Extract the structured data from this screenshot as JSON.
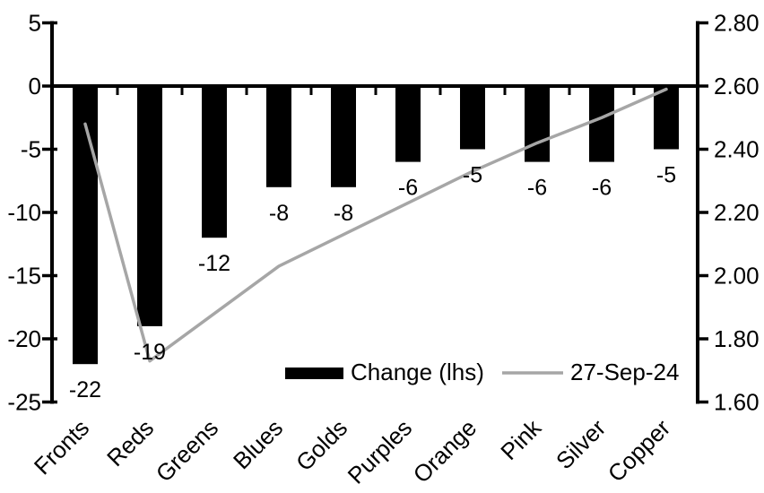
{
  "chart_data": {
    "type": "combo",
    "title": "",
    "categories": [
      "Fronts",
      "Reds",
      "Greens",
      "Blues",
      "Golds",
      "Purples",
      "Orange",
      "Pink",
      "Silver",
      "Copper"
    ],
    "series": [
      {
        "name": "Change (lhs)",
        "type": "bar",
        "axis": "left",
        "color": "#000000",
        "values": [
          -22,
          -19,
          -12,
          -8,
          -8,
          -6,
          -5,
          -6,
          -6,
          -5
        ],
        "data_labels": [
          "-22",
          "-19",
          "-12",
          "-8",
          "-8",
          "-6",
          "-5",
          "-6",
          "-6",
          "-5"
        ]
      },
      {
        "name": "27-Sep-24",
        "type": "line",
        "axis": "right",
        "color": "#a6a6a6",
        "values": [
          2.48,
          1.73,
          1.88,
          2.03,
          2.13,
          2.23,
          2.33,
          2.42,
          2.5,
          2.59
        ]
      }
    ],
    "left_axis": {
      "min": -25,
      "max": 5,
      "tick_values": [
        5,
        0,
        -5,
        -10,
        -15,
        -20,
        -25
      ],
      "tick_labels": [
        "5",
        "0",
        "-5",
        "-10",
        "-15",
        "-20",
        "-25"
      ]
    },
    "right_axis": {
      "min": 1.6,
      "max": 2.8,
      "tick_values": [
        2.8,
        2.6,
        2.4,
        2.2,
        2.0,
        1.8,
        1.6
      ],
      "tick_labels": [
        "2.80",
        "2.60",
        "2.40",
        "2.20",
        "2.00",
        "1.80",
        "1.60"
      ]
    },
    "legend": {
      "position": "bottom-inside",
      "entries": [
        {
          "label": "Change (lhs)",
          "swatch": "bar"
        },
        {
          "label": "27-Sep-24",
          "swatch": "line"
        }
      ]
    },
    "grid": false,
    "colors": {
      "bar": "#000000",
      "line": "#a6a6a6",
      "axis": "#000000",
      "text": "#000000",
      "background": "#ffffff"
    }
  }
}
